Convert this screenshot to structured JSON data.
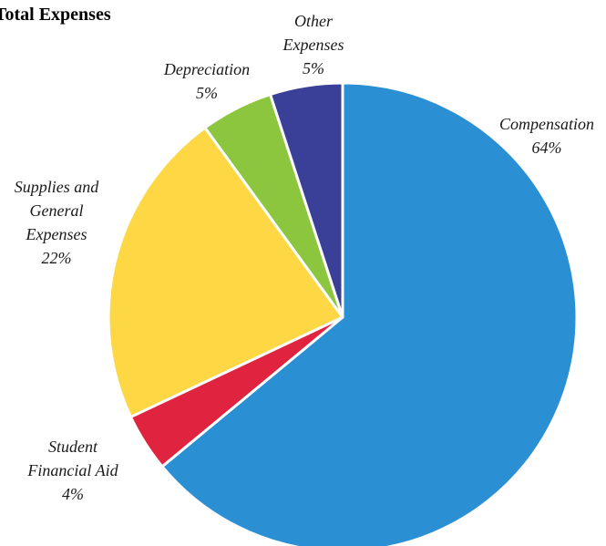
{
  "chart_data": {
    "type": "pie",
    "title": "Total Expenses",
    "slices": [
      {
        "label": "Compensation",
        "value": 64,
        "value_label": "64%",
        "color": "#2b8fd4"
      },
      {
        "label": "Student Financial Aid",
        "value": 4,
        "value_label": "4%",
        "color": "#e0243f"
      },
      {
        "label": "Supplies and General Expenses",
        "value": 22,
        "value_label": "22%",
        "color": "#fdd844"
      },
      {
        "label": "Depreciation",
        "value": 5,
        "value_label": "5%",
        "color": "#8cc63f"
      },
      {
        "label": "Other Expenses",
        "value": 5,
        "value_label": "5%",
        "color": "#3a3f97"
      }
    ],
    "legend": "none"
  }
}
